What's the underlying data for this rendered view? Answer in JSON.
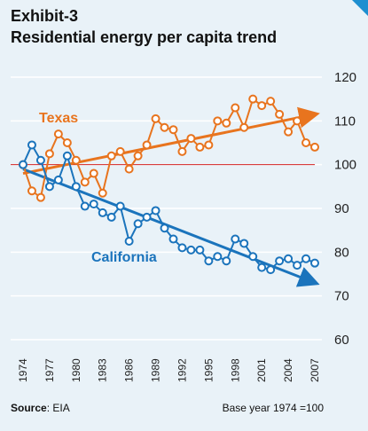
{
  "header": {
    "exhibit": "Exhibit-3",
    "title": "Residential energy per capita trend"
  },
  "footer": {
    "source_label": "Source",
    "source_value": ": EIA",
    "note": "Base year 1974 =100"
  },
  "colors": {
    "texas": "#e8741e",
    "california": "#1b74bc",
    "baseline": "#d32222",
    "background": "#e9f2f8",
    "grid": "#ffffff",
    "accent_corner": "#1e8fd0"
  },
  "chart_data": {
    "type": "line",
    "title": "Residential energy per capita trend",
    "x": [
      1974,
      1975,
      1976,
      1977,
      1978,
      1979,
      1980,
      1981,
      1982,
      1983,
      1984,
      1985,
      1986,
      1987,
      1988,
      1989,
      1990,
      1991,
      1992,
      1993,
      1994,
      1995,
      1996,
      1997,
      1998,
      1999,
      2000,
      2001,
      2002,
      2003,
      2004,
      2005,
      2006,
      2007
    ],
    "x_tick_labels": [
      "1974",
      "1977",
      "1980",
      "1983",
      "1986",
      "1989",
      "1992",
      "1995",
      "1998",
      "2001",
      "2004",
      "2007"
    ],
    "ylim": [
      60,
      120
    ],
    "y_ticks": [
      60,
      70,
      80,
      90,
      100,
      110,
      120
    ],
    "y_axis_side": "right",
    "grid": true,
    "baseline_value": 100,
    "series": [
      {
        "name": "Texas",
        "color_key": "texas",
        "values": [
          100,
          94,
          92.5,
          102.5,
          107,
          105,
          101,
          96,
          98,
          93.5,
          102,
          103,
          99,
          102,
          104.5,
          110.5,
          108.5,
          108,
          103,
          106,
          104,
          104.5,
          110,
          109.5,
          113,
          108.5,
          115,
          113.5,
          114.5,
          111.5,
          107.5,
          110,
          105,
          104
        ],
        "trend": {
          "start": [
            1974,
            98
          ],
          "end": [
            2007,
            111.5
          ]
        },
        "label_position": "upper-left"
      },
      {
        "name": "California",
        "color_key": "california",
        "values": [
          100,
          104.5,
          101,
          95,
          96.5,
          102,
          95,
          90.5,
          91,
          89,
          88,
          90.5,
          82.5,
          86.5,
          88,
          89.5,
          85.5,
          83,
          81,
          80.5,
          80.5,
          78,
          79,
          78,
          83,
          82,
          79,
          76.5,
          76,
          78,
          78.5,
          77,
          78.5,
          77.5
        ],
        "trend": {
          "start": [
            1974,
            99
          ],
          "end": [
            2007,
            73
          ]
        },
        "label_position": "middle"
      }
    ]
  }
}
